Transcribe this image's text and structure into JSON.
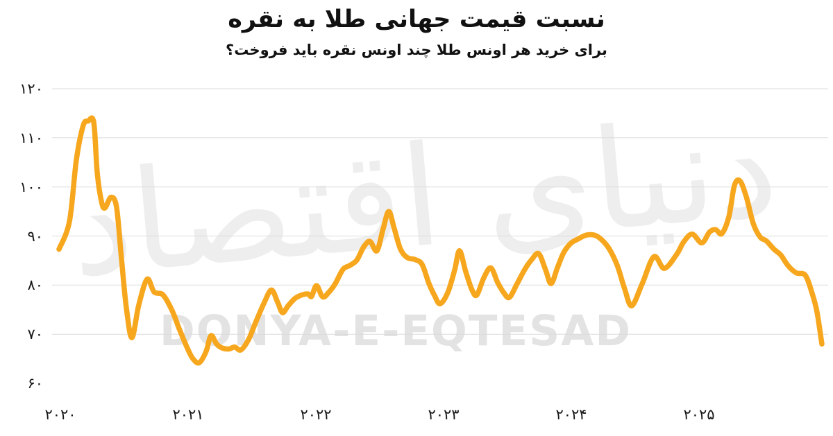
{
  "title": "نسبت قیمت جهانی طلا به نقره",
  "subtitle": "برای خرید هر اونس طلا چند اونس نقره باید فروخت؟",
  "watermark": {
    "persian_logo": "دنیای اقتصاد",
    "latin": "DONYA-E-EQTESAD"
  },
  "colors": {
    "background": "#FFFFFF",
    "line": "#F6A71E",
    "grid": "#DBDBDB",
    "text": "#161616",
    "watermark_persian": "#EEEEEE",
    "watermark_latin": "#E3E3E3"
  },
  "chart_data": {
    "type": "line",
    "title": "نسبت قیمت جهانی طلا به نقره",
    "subtitle": "برای خرید هر اونس طلا چند اونس نقره باید فروخت؟",
    "legend_position": "none",
    "grid": "horizontal-only",
    "x_axis": {
      "range": [
        2019.95,
        2026.05
      ],
      "ticks": [
        2020,
        2021,
        2022,
        2023,
        2024,
        2025
      ],
      "tick_labels": [
        "۲۰۲۰",
        "۲۰۲۱",
        "۲۰۲۲",
        "۲۰۲۳",
        "۲۰۲۴",
        "۲۰۲۵"
      ]
    },
    "y_axis": {
      "range": [
        60,
        120
      ],
      "ticks": [
        120,
        110,
        100,
        90,
        80,
        70,
        60
      ],
      "tick_labels": [
        "۱۲۰",
        "۱۱۰",
        "۱۰۰",
        "۹۰",
        "۸۰",
        "۷۰",
        "۶۰"
      ],
      "gridlines_at": [
        120,
        110,
        100,
        90,
        80,
        70
      ]
    },
    "series": [
      {
        "name": "gold-to-silver-ratio",
        "points": [
          [
            2019.989,
            87.3
          ],
          [
            2020.071,
            93.0
          ],
          [
            2020.125,
            105.5
          ],
          [
            2020.179,
            112.5
          ],
          [
            2020.217,
            113.4
          ],
          [
            2020.261,
            113.2
          ],
          [
            2020.288,
            103.0
          ],
          [
            2020.321,
            97.1
          ],
          [
            2020.348,
            95.7
          ],
          [
            2020.397,
            97.9
          ],
          [
            2020.44,
            95.8
          ],
          [
            2020.478,
            85.4
          ],
          [
            2020.516,
            75.5
          ],
          [
            2020.56,
            69.3
          ],
          [
            2020.614,
            76.0
          ],
          [
            2020.679,
            81.2
          ],
          [
            2020.734,
            78.6
          ],
          [
            2020.804,
            78.0
          ],
          [
            2020.875,
            74.8
          ],
          [
            2020.929,
            71.2
          ],
          [
            2020.995,
            67.1
          ],
          [
            2021.038,
            65.0
          ],
          [
            2021.087,
            64.2
          ],
          [
            2021.141,
            66.5
          ],
          [
            2021.179,
            69.7
          ],
          [
            2021.223,
            68.0
          ],
          [
            2021.266,
            67.2
          ],
          [
            2021.321,
            67.0
          ],
          [
            2021.364,
            67.4
          ],
          [
            2021.413,
            66.8
          ],
          [
            2021.473,
            68.9
          ],
          [
            2021.527,
            72.3
          ],
          [
            2021.592,
            76.2
          ],
          [
            2021.652,
            79.0
          ],
          [
            2021.701,
            76.5
          ],
          [
            2021.739,
            74.4
          ],
          [
            2021.783,
            75.8
          ],
          [
            2021.837,
            77.3
          ],
          [
            2021.891,
            78.0
          ],
          [
            2021.94,
            78.2
          ],
          [
            2021.967,
            77.7
          ],
          [
            2022.005,
            79.9
          ],
          [
            2022.054,
            77.6
          ],
          [
            2022.103,
            78.6
          ],
          [
            2022.152,
            80.3
          ],
          [
            2022.212,
            83.2
          ],
          [
            2022.266,
            84.0
          ],
          [
            2022.321,
            85.1
          ],
          [
            2022.375,
            87.8
          ],
          [
            2022.424,
            88.9
          ],
          [
            2022.478,
            87.0
          ],
          [
            2022.527,
            91.5
          ],
          [
            2022.571,
            95.0
          ],
          [
            2022.614,
            91.5
          ],
          [
            2022.663,
            87.3
          ],
          [
            2022.717,
            85.6
          ],
          [
            2022.777,
            85.2
          ],
          [
            2022.832,
            84.2
          ],
          [
            2022.886,
            80.3
          ],
          [
            2022.929,
            77.9
          ],
          [
            2022.973,
            76.2
          ],
          [
            2023.033,
            78.5
          ],
          [
            2023.087,
            83.1
          ],
          [
            2023.125,
            87.0
          ],
          [
            2023.174,
            82.7
          ],
          [
            2023.223,
            79.0
          ],
          [
            2023.261,
            78.0
          ],
          [
            2023.315,
            81.5
          ],
          [
            2023.37,
            83.5
          ],
          [
            2023.424,
            80.5
          ],
          [
            2023.473,
            78.4
          ],
          [
            2023.516,
            77.5
          ],
          [
            2023.576,
            80.3
          ],
          [
            2023.636,
            83.2
          ],
          [
            2023.69,
            85.2
          ],
          [
            2023.745,
            86.4
          ],
          [
            2023.799,
            83.1
          ],
          [
            2023.842,
            80.3
          ],
          [
            2023.891,
            83.5
          ],
          [
            2023.94,
            86.6
          ],
          [
            2023.995,
            88.5
          ],
          [
            2024.054,
            89.4
          ],
          [
            2024.12,
            90.2
          ],
          [
            2024.19,
            90.1
          ],
          [
            2024.255,
            88.8
          ],
          [
            2024.31,
            86.8
          ],
          [
            2024.364,
            83.7
          ],
          [
            2024.418,
            79.2
          ],
          [
            2024.473,
            75.8
          ],
          [
            2024.554,
            80.2
          ],
          [
            2024.647,
            85.8
          ],
          [
            2024.728,
            83.4
          ],
          [
            2024.826,
            86.3
          ],
          [
            2024.88,
            88.8
          ],
          [
            2024.946,
            90.4
          ],
          [
            2025.022,
            88.6
          ],
          [
            2025.082,
            90.8
          ],
          [
            2025.13,
            91.3
          ],
          [
            2025.179,
            90.5
          ],
          [
            2025.234,
            94.0
          ],
          [
            2025.277,
            100.3
          ],
          [
            2025.321,
            101.2
          ],
          [
            2025.37,
            98.0
          ],
          [
            2025.424,
            92.6
          ],
          [
            2025.478,
            89.8
          ],
          [
            2025.527,
            89.0
          ],
          [
            2025.587,
            87.3
          ],
          [
            2025.641,
            86.1
          ],
          [
            2025.696,
            84.0
          ],
          [
            2025.761,
            82.5
          ],
          [
            2025.832,
            82.0
          ],
          [
            2025.886,
            78.3
          ],
          [
            2025.924,
            74.5
          ],
          [
            2025.962,
            68.0
          ]
        ]
      }
    ]
  }
}
